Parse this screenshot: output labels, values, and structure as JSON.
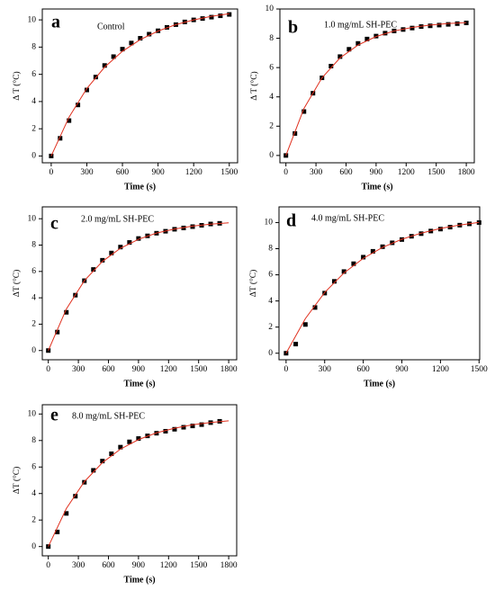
{
  "chart_data": [
    {
      "type": "scatter",
      "panel": "a",
      "annotation": "Control",
      "x_label": "Time (s)",
      "y_label": "Δ T (°C)",
      "xlim": [
        -75,
        1570
      ],
      "ylim": [
        -0.5,
        10.8
      ],
      "xticks": [
        0,
        300,
        600,
        900,
        1200,
        1500
      ],
      "yticks": [
        0,
        2,
        4,
        6,
        8,
        10
      ],
      "scatter": {
        "color": "#000000",
        "x": [
          0,
          75,
          150,
          225,
          300,
          375,
          450,
          525,
          600,
          675,
          750,
          825,
          900,
          975,
          1050,
          1125,
          1200,
          1275,
          1350,
          1425,
          1500
        ],
        "values": [
          0,
          1.3,
          2.6,
          3.75,
          4.85,
          5.8,
          6.65,
          7.3,
          7.85,
          8.3,
          8.65,
          8.95,
          9.2,
          9.45,
          9.65,
          9.85,
          10.0,
          10.1,
          10.2,
          10.3,
          10.4
        ]
      },
      "fit": {
        "color": "#e0301e",
        "x": [
          0,
          150,
          300,
          450,
          600,
          750,
          900,
          1050,
          1200,
          1350,
          1500
        ],
        "values": [
          0,
          2.85,
          4.96,
          6.53,
          7.69,
          8.55,
          9.18,
          9.65,
          10.0,
          10.26,
          10.45
        ]
      }
    },
    {
      "type": "scatter",
      "panel": "b",
      "annotation": "1.0 mg/mL SH-PEC",
      "x_label": "Time (s)",
      "y_label": "Δ T (°C)",
      "xlim": [
        -60,
        1880
      ],
      "ylim": [
        -0.5,
        10
      ],
      "xticks": [
        0,
        300,
        600,
        900,
        1200,
        1500,
        1800
      ],
      "yticks": [
        0,
        2,
        4,
        6,
        8,
        10
      ],
      "scatter": {
        "color": "#000000",
        "x": [
          0,
          90,
          180,
          270,
          360,
          450,
          540,
          630,
          720,
          810,
          900,
          990,
          1080,
          1170,
          1260,
          1350,
          1440,
          1530,
          1620,
          1710,
          1800
        ],
        "values": [
          0,
          1.5,
          3.0,
          4.25,
          5.3,
          6.1,
          6.75,
          7.25,
          7.65,
          7.95,
          8.15,
          8.35,
          8.5,
          8.6,
          8.7,
          8.8,
          8.85,
          8.9,
          8.95,
          9.0,
          9.05
        ]
      },
      "fit": {
        "color": "#e0301e",
        "x": [
          0,
          180,
          360,
          540,
          720,
          900,
          1080,
          1260,
          1440,
          1620,
          1800
        ],
        "values": [
          0,
          3.21,
          5.3,
          6.66,
          7.54,
          8.12,
          8.5,
          8.74,
          8.9,
          9.01,
          9.07
        ]
      }
    },
    {
      "type": "scatter",
      "panel": "c",
      "annotation": "2.0 mg/mL SH-PEC",
      "x_label": "Time (s)",
      "y_label": "ΔT (°C)",
      "xlim": [
        -60,
        1880
      ],
      "ylim": [
        -0.7,
        10.9
      ],
      "xticks": [
        0,
        300,
        600,
        900,
        1200,
        1500,
        1800
      ],
      "yticks": [
        0,
        2,
        4,
        6,
        8,
        10
      ],
      "scatter": {
        "color": "#000000",
        "x": [
          0,
          90,
          180,
          270,
          360,
          450,
          540,
          630,
          720,
          810,
          900,
          990,
          1080,
          1170,
          1260,
          1350,
          1440,
          1530,
          1620,
          1710
        ],
        "values": [
          0,
          1.4,
          2.9,
          4.2,
          5.3,
          6.15,
          6.85,
          7.4,
          7.85,
          8.2,
          8.5,
          8.7,
          8.9,
          9.05,
          9.2,
          9.3,
          9.4,
          9.5,
          9.6,
          9.65
        ]
      },
      "fit": {
        "color": "#e0301e",
        "x": [
          0,
          180,
          360,
          540,
          720,
          900,
          1080,
          1260,
          1440,
          1620,
          1800
        ],
        "values": [
          0,
          3.15,
          5.3,
          6.76,
          7.76,
          8.44,
          8.91,
          9.22,
          9.44,
          9.59,
          9.69
        ]
      }
    },
    {
      "type": "scatter",
      "panel": "d",
      "annotation": "4.0 mg/mL SH-PEC",
      "x_label": "Time (s)",
      "y_label": "ΔT (°C)",
      "xlim": [
        -55,
        1505
      ],
      "ylim": [
        -0.5,
        11.2
      ],
      "xticks": [
        0,
        300,
        600,
        900,
        1200,
        1500
      ],
      "yticks": [
        0,
        2,
        4,
        6,
        8,
        10
      ],
      "scatter": {
        "color": "#000000",
        "x": [
          0,
          75,
          150,
          225,
          300,
          375,
          450,
          525,
          600,
          675,
          750,
          825,
          900,
          975,
          1050,
          1125,
          1200,
          1275,
          1350,
          1425,
          1500
        ],
        "values": [
          0,
          0.7,
          2.2,
          3.5,
          4.6,
          5.5,
          6.25,
          6.85,
          7.35,
          7.8,
          8.15,
          8.45,
          8.7,
          8.95,
          9.15,
          9.35,
          9.5,
          9.65,
          9.8,
          9.9,
          10.0
        ]
      },
      "fit": {
        "color": "#e0301e",
        "x": [
          0,
          150,
          300,
          450,
          600,
          750,
          900,
          1050,
          1200,
          1350,
          1500
        ],
        "values": [
          0,
          2.65,
          4.65,
          6.14,
          7.26,
          8.1,
          8.72,
          9.19,
          9.55,
          9.81,
          10.01
        ]
      }
    },
    {
      "type": "scatter",
      "panel": "e",
      "annotation": "8.0 mg/mL SH-PEC",
      "x_label": "Time (s)",
      "y_label": "ΔT (°C)",
      "xlim": [
        -60,
        1880
      ],
      "ylim": [
        -0.7,
        10.7
      ],
      "xticks": [
        0,
        300,
        600,
        900,
        1200,
        1500,
        1800
      ],
      "yticks": [
        0,
        2,
        4,
        6,
        8,
        10
      ],
      "scatter": {
        "color": "#000000",
        "x": [
          0,
          90,
          180,
          270,
          360,
          450,
          540,
          630,
          720,
          810,
          900,
          990,
          1080,
          1170,
          1260,
          1350,
          1440,
          1530,
          1620,
          1710
        ],
        "values": [
          0,
          1.1,
          2.5,
          3.8,
          4.85,
          5.75,
          6.45,
          7.0,
          7.5,
          7.9,
          8.15,
          8.35,
          8.55,
          8.7,
          8.85,
          9.0,
          9.1,
          9.2,
          9.35,
          9.45
        ]
      },
      "fit": {
        "color": "#e0301e",
        "x": [
          0,
          180,
          360,
          540,
          720,
          900,
          1080,
          1260,
          1440,
          1620,
          1800
        ],
        "values": [
          0,
          2.87,
          4.9,
          6.33,
          7.35,
          8.07,
          8.58,
          8.93,
          9.19,
          9.36,
          9.49
        ]
      }
    }
  ]
}
